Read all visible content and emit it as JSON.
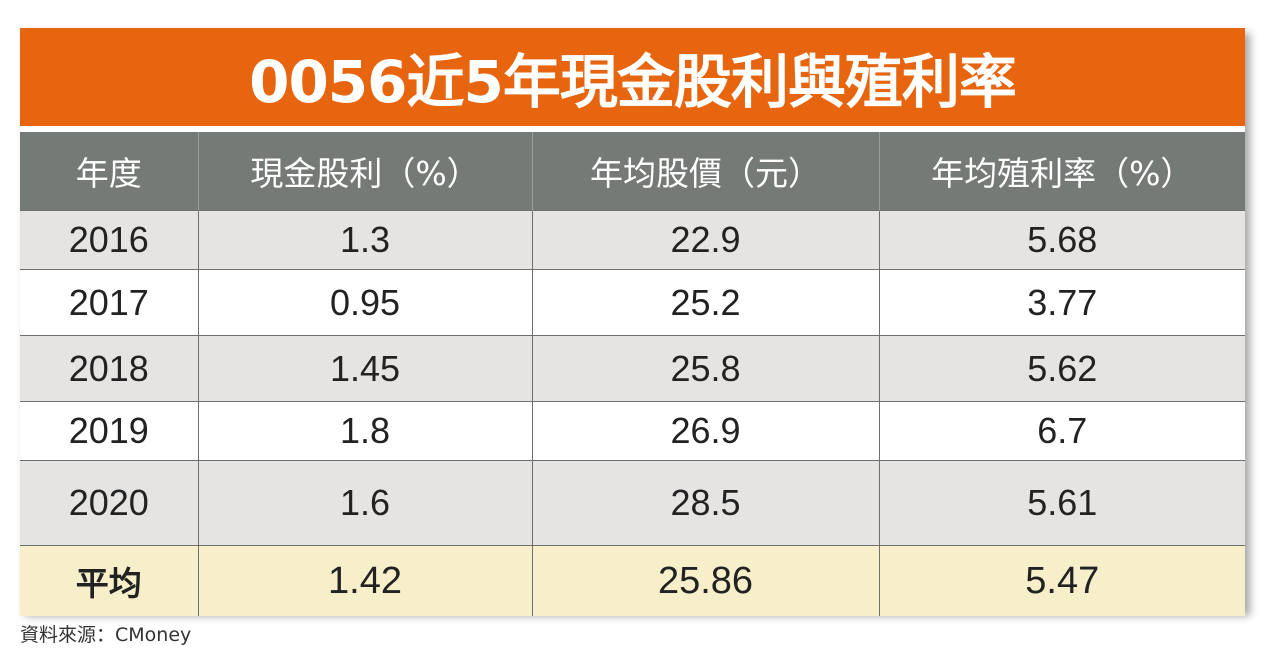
{
  "title": "0056近5年現金股利與殖利率",
  "headers": [
    "年度",
    "現金股利（%）",
    "年均股價（元）",
    "年均殖利率（%）"
  ],
  "rows": [
    {
      "year": "2016",
      "dividend": "1.3",
      "price": "22.9",
      "yield": "5.68"
    },
    {
      "year": "2017",
      "dividend": "0.95",
      "price": "25.2",
      "yield": "3.77"
    },
    {
      "year": "2018",
      "dividend": "1.45",
      "price": "25.8",
      "yield": "5.62"
    },
    {
      "year": "2019",
      "dividend": "1.8",
      "price": "26.9",
      "yield": "6.7"
    },
    {
      "year": "2020",
      "dividend": "1.6",
      "price": "28.5",
      "yield": "5.61"
    }
  ],
  "average": {
    "label": "平均",
    "dividend": "1.42",
    "price": "25.86",
    "yield": "5.47"
  },
  "source": "資料來源：CMoney",
  "colors": {
    "title_bg": "#e8650f",
    "header_bg": "#757a77",
    "row_gray": "#e6e4e3",
    "average_bg": "#f7efc9"
  }
}
